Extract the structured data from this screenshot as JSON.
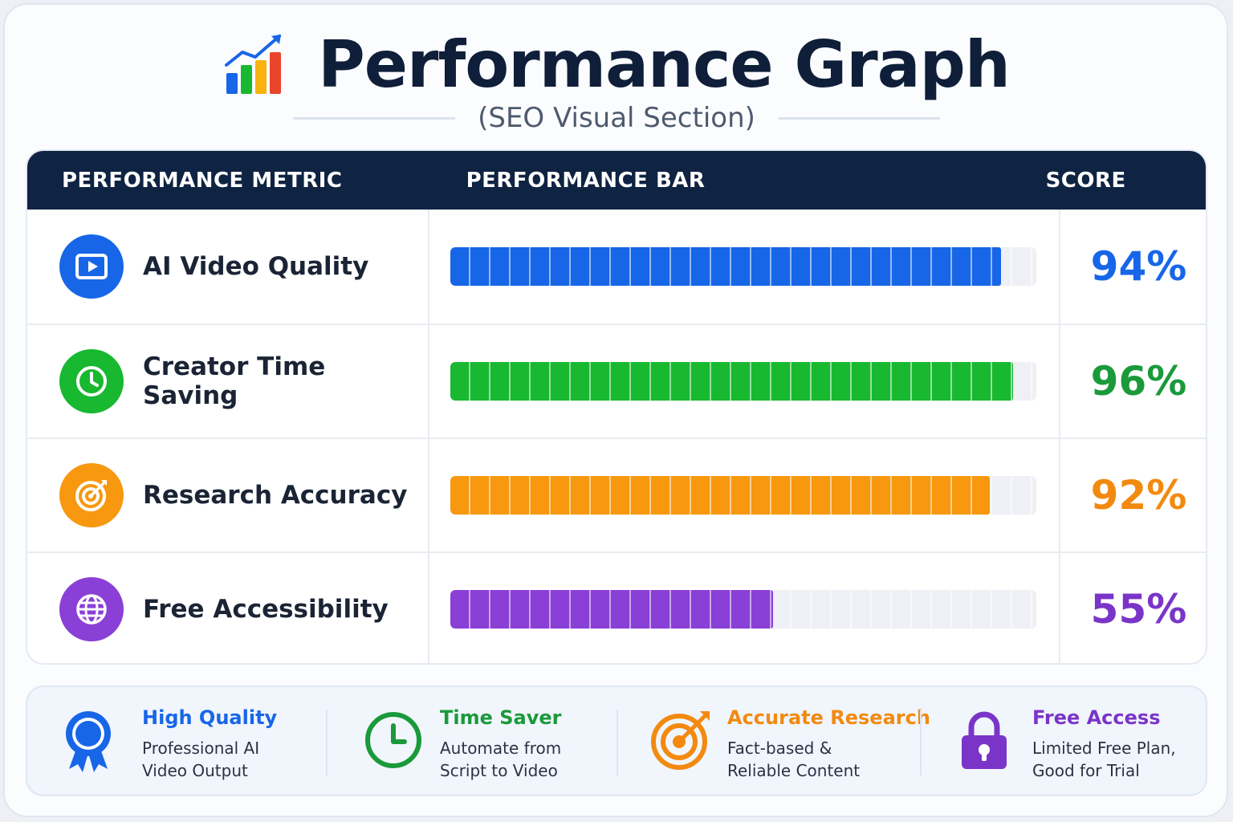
{
  "header": {
    "title": "Performance Graph",
    "subtitle": "(SEO Visual Section)",
    "icon": "bar-chart-trend-icon"
  },
  "table": {
    "col_metric": "PERFORMANCE METRIC",
    "col_bar": "PERFORMANCE BAR",
    "col_score": "SCORE"
  },
  "chart_data": {
    "type": "bar",
    "orientation": "horizontal",
    "categories": [
      "AI Video Quality",
      "Creator Time Saving",
      "Research Accuracy",
      "Free Accessibility"
    ],
    "values": [
      94,
      96,
      92,
      55
    ],
    "value_labels": [
      "94%",
      "96%",
      "92%",
      "55%"
    ],
    "xlim": [
      0,
      100
    ],
    "colors": [
      "#1766e8",
      "#18b830",
      "#f7980f",
      "#8a3fd6"
    ],
    "score_colors": [
      "#1766e8",
      "#1a9a3a",
      "#f28a10",
      "#7a35c8"
    ],
    "icons": [
      "video-play-icon",
      "clock-icon",
      "target-icon",
      "globe-icon"
    ]
  },
  "features": [
    {
      "title": "High Quality",
      "desc": "Professional AI Video Output",
      "color": "#1766e8",
      "icon": "award-ribbon-icon"
    },
    {
      "title": "Time Saver",
      "desc": "Automate from Script to Video",
      "color": "#1a9a3a",
      "icon": "clock-icon"
    },
    {
      "title": "Accurate Research",
      "desc": "Fact-based & Reliable Content",
      "color": "#f28a10",
      "icon": "target-icon"
    },
    {
      "title": "Free Access",
      "desc": "Limited Free Plan, Good for Trial",
      "color": "#7a35c8",
      "icon": "lock-icon"
    }
  ]
}
